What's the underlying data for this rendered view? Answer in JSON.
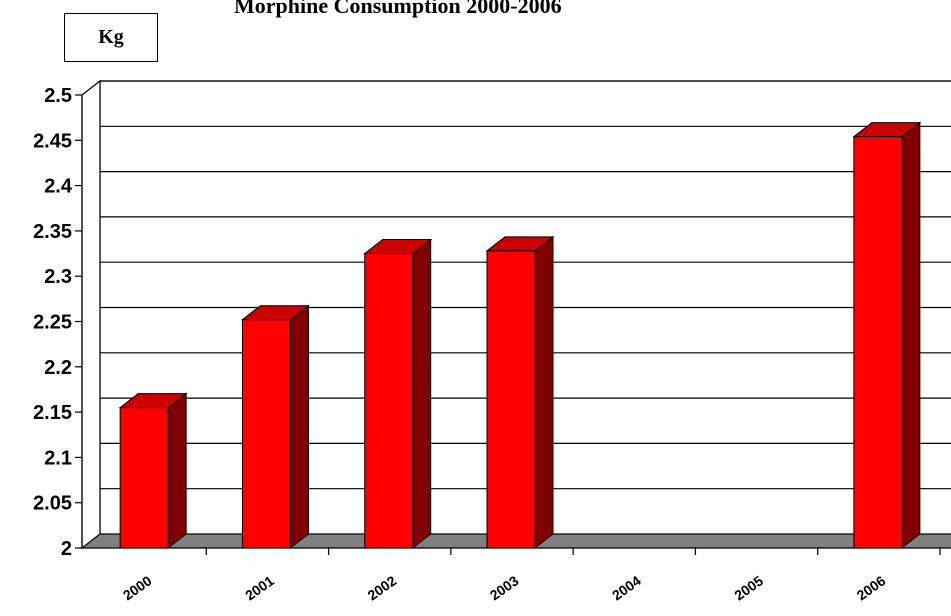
{
  "chart_data": {
    "type": "bar",
    "title": "Morphine Consumption 2000-2006",
    "ylabel": "Kg",
    "xlabel": "",
    "categories": [
      "2000",
      "2001",
      "2002",
      "2003",
      "2004",
      "2005",
      "2006"
    ],
    "values": [
      2.155,
      2.252,
      2.325,
      2.328,
      null,
      null,
      2.454
    ],
    "yticks": [
      "2",
      "2.05",
      "2.1",
      "2.15",
      "2.2",
      "2.25",
      "2.3",
      "2.35",
      "2.4",
      "2.45",
      "2.5"
    ],
    "ylim": [
      2,
      2.5
    ],
    "grid": true,
    "legend": "none",
    "style": "3d",
    "colors": {
      "bar_front": "#ff0000",
      "bar_side": "#800000",
      "bar_top": "#cc0000",
      "floor": "#808080"
    }
  }
}
